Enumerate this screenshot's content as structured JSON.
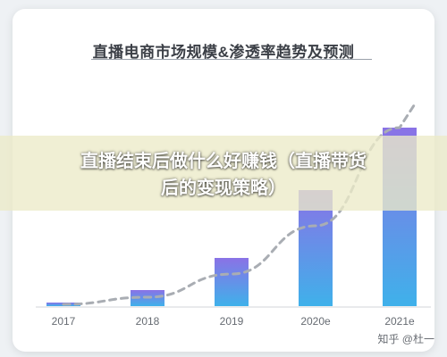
{
  "chart_data": {
    "type": "bar",
    "title": "直播电商市场规模&渗透率趋势及预测",
    "categories": [
      "2017",
      "2018",
      "2019",
      "2020e",
      "2021e"
    ],
    "series": [
      {
        "values": [
          2,
          9,
          27,
          65,
          100
        ]
      }
    ],
    "trend_line": [
      1,
      5,
      18,
      45,
      100
    ],
    "ylim": [
      0,
      110
    ],
    "grid": false,
    "legend": "none",
    "bar_gradient": {
      "top": "#8a72e6",
      "bottom": "#3fb1ea"
    },
    "trend_line_color": "#a9adb3"
  },
  "overlay": {
    "headline": "直播结束后做什么好赚钱（直播带货后的变现策略）"
  },
  "watermark": "知乎 @杜一"
}
